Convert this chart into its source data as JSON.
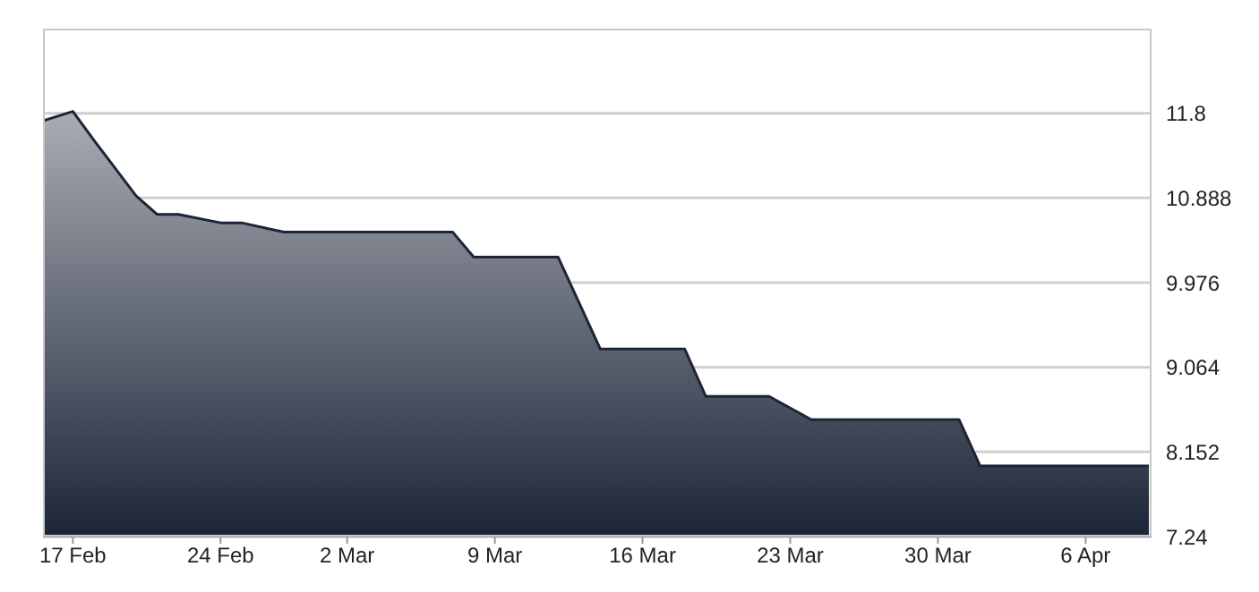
{
  "chart_data": {
    "type": "area",
    "x": [
      "--02-15T14:00",
      "--02-17",
      "--02-18",
      "--02-20",
      "--02-21",
      "--02-22",
      "--02-24",
      "--02-25",
      "--02-27",
      "--03-07",
      "--03-08",
      "--03-12",
      "--03-14",
      "--03-18",
      "--03-19",
      "--03-22",
      "--03-24",
      "--03-31",
      "--04-01",
      "--04-09"
    ],
    "series": [
      {
        "color": "#1c2538",
        "values": [
          11.72,
          11.82,
          11.51,
          10.91,
          10.71,
          10.71,
          10.62,
          10.62,
          10.52,
          10.52,
          10.25,
          10.25,
          9.26,
          9.26,
          8.75,
          8.75,
          8.5,
          8.5,
          8.0,
          8.0
        ]
      }
    ],
    "xlim": [
      "--02-15T14:00",
      "--04-09T03:00"
    ],
    "xticks": [
      {
        "value": "--02-17",
        "label": "17 Feb"
      },
      {
        "value": "--02-24",
        "label": "24 Feb"
      },
      {
        "value": "--03-02",
        "label": "2 Mar"
      },
      {
        "value": "--03-09",
        "label": "9 Mar"
      },
      {
        "value": "--03-16",
        "label": "16 Mar"
      },
      {
        "value": "--03-23",
        "label": "23 Mar"
      },
      {
        "value": "--03-30",
        "label": "30 Mar"
      },
      {
        "value": "--04-06",
        "label": "6 Apr"
      }
    ],
    "ylim": [
      7.24,
      12.712
    ],
    "yticks": [
      7.24,
      8.152,
      9.064,
      9.976,
      10.888,
      11.8
    ],
    "grid": "y",
    "marker": "none",
    "line_style": "solid"
  }
}
